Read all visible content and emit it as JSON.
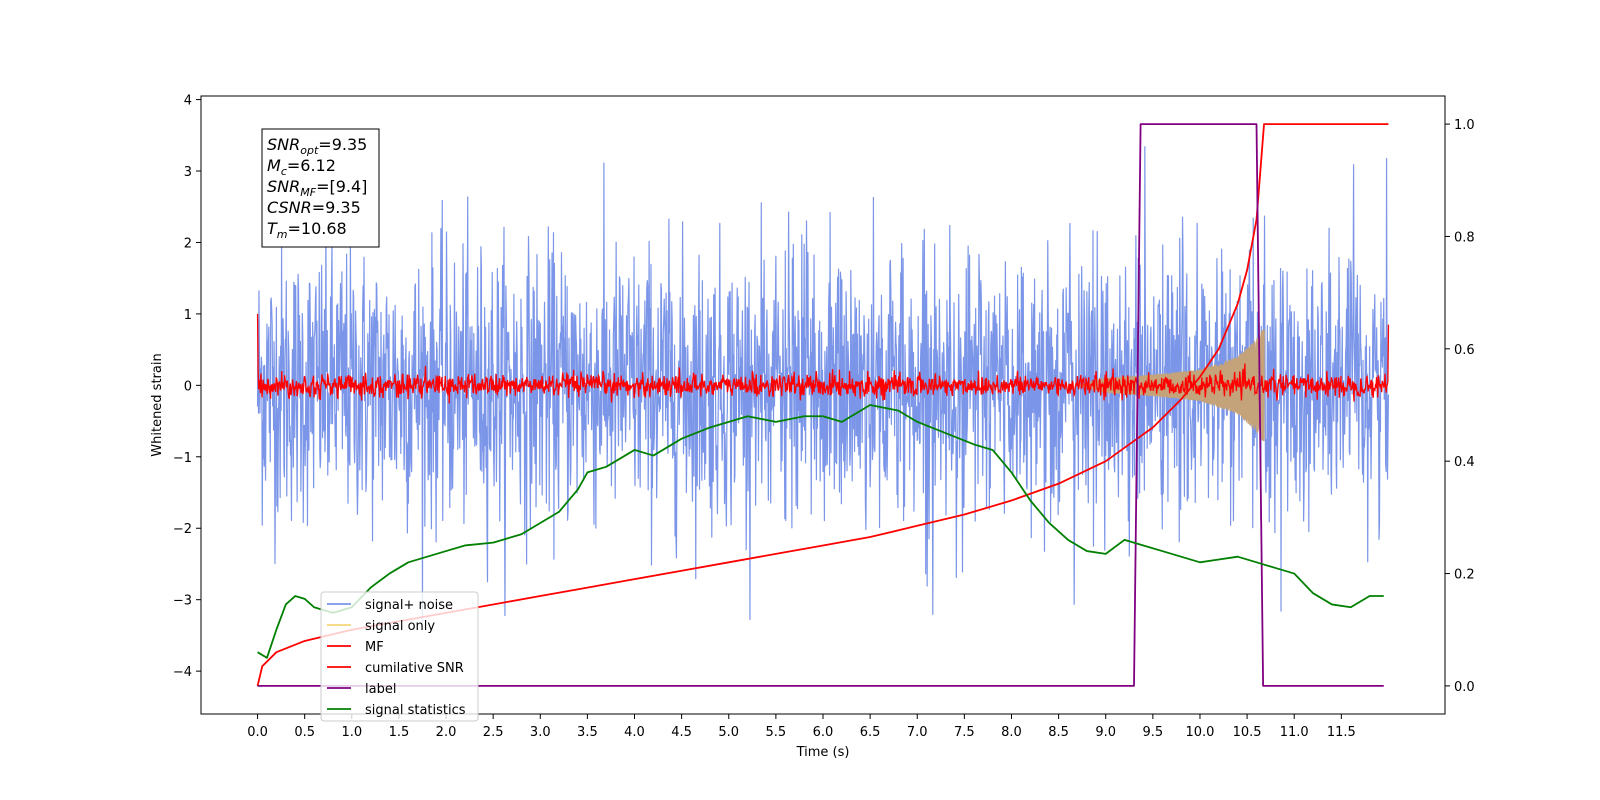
{
  "chart_data": {
    "type": "line",
    "title": "",
    "xlabel": "Time (s)",
    "ylabel": "Whitened strain",
    "y2label": "",
    "xlim": [
      -0.6,
      12.6
    ],
    "ylim": [
      -4.6,
      4.05
    ],
    "y2lim": [
      -0.05,
      1.05
    ],
    "xticks": [
      0.0,
      0.5,
      1.0,
      1.5,
      2.0,
      2.5,
      3.0,
      3.5,
      4.0,
      4.5,
      5.0,
      5.5,
      6.0,
      6.5,
      7.0,
      7.5,
      8.0,
      8.5,
      9.0,
      9.5,
      10.0,
      10.5,
      11.0,
      11.5
    ],
    "xtick_labels": [
      "0.0",
      "0.5",
      "1.0",
      "1.5",
      "2.0",
      "2.5",
      "3.0",
      "3.5",
      "4.0",
      "4.5",
      "5.0",
      "5.5",
      "6.0",
      "6.5",
      "7.0",
      "7.5",
      "8.0",
      "8.5",
      "9.0",
      "9.5",
      "10.0",
      "10.5",
      "11.0",
      "11.5"
    ],
    "yticks": [
      -4,
      -3,
      -2,
      -1,
      0,
      1,
      2,
      3,
      4
    ],
    "ytick_labels": [
      "−4",
      "−3",
      "−2",
      "−1",
      "0",
      "1",
      "2",
      "3",
      "4"
    ],
    "y2ticks": [
      0.0,
      0.2,
      0.4,
      0.6,
      0.8,
      1.0
    ],
    "y2tick_labels": [
      "0.0",
      "0.2",
      "0.4",
      "0.6",
      "0.8",
      "1.0"
    ],
    "grid": false,
    "legend_position": "bottom-left",
    "info_box": {
      "position": "top-left",
      "lines": [
        {
          "name": "SNR",
          "sub": "opt",
          "value": "=9.35"
        },
        {
          "name": "M",
          "sub": "c",
          "value": "=6.12"
        },
        {
          "name": "SNR",
          "sub": "MF",
          "value": "=[9.4]"
        },
        {
          "name": "CSNR",
          "sub": "",
          "value": "=9.35"
        },
        {
          "name": "T",
          "sub": "m",
          "value": "=10.68"
        }
      ]
    },
    "series": [
      {
        "name": "signal+ noise",
        "color": "#7b96e8",
        "axis": "left",
        "kind": "noise",
        "t_start": 0.0,
        "t_end": 12.0,
        "rms": 0.95,
        "mean": 0.0,
        "max": 3.65,
        "min": -3.4
      },
      {
        "name": "signal only",
        "color": "#f5d77a",
        "axis": "left",
        "kind": "chirp",
        "t_start": 8.7,
        "t_end": 10.68,
        "envelope": [
          [
            8.7,
            0.0
          ],
          [
            9.0,
            0.1
          ],
          [
            9.5,
            0.15
          ],
          [
            10.0,
            0.22
          ],
          [
            10.4,
            0.4
          ],
          [
            10.6,
            0.65
          ],
          [
            10.68,
            0.8
          ]
        ],
        "overlap_color": "#c4a27a"
      },
      {
        "name": "MF",
        "color": "#ff0000",
        "axis": "left",
        "kind": "noise",
        "t_start": 0.0,
        "t_end": 12.0,
        "rms": 0.08,
        "mean": 0.0,
        "start_value": 1.0,
        "end_value": 0.85
      },
      {
        "name": "cumilative SNR",
        "color": "#ff0000",
        "axis": "right",
        "kind": "line",
        "x": [
          0.0,
          0.05,
          0.2,
          0.5,
          1.0,
          1.5,
          2.0,
          2.5,
          3.0,
          3.5,
          4.0,
          4.5,
          5.0,
          5.5,
          6.0,
          6.5,
          7.0,
          7.5,
          8.0,
          8.5,
          9.0,
          9.5,
          9.8,
          10.0,
          10.2,
          10.4,
          10.5,
          10.6,
          10.68,
          12.0
        ],
        "y": [
          0.0,
          0.035,
          0.06,
          0.08,
          0.1,
          0.115,
          0.13,
          0.145,
          0.16,
          0.175,
          0.19,
          0.205,
          0.22,
          0.235,
          0.25,
          0.265,
          0.285,
          0.305,
          0.33,
          0.36,
          0.4,
          0.46,
          0.51,
          0.55,
          0.6,
          0.68,
          0.74,
          0.83,
          1.0,
          1.0
        ]
      },
      {
        "name": "label",
        "color": "#800080",
        "axis": "right",
        "kind": "line",
        "x": [
          0.0,
          9.3,
          9.37,
          10.6,
          10.67,
          11.95
        ],
        "y": [
          0.0,
          0.0,
          1.0,
          1.0,
          0.0,
          0.0
        ]
      },
      {
        "name": "signal statistics",
        "color": "#008000",
        "axis": "right",
        "kind": "line",
        "x": [
          0.0,
          0.1,
          0.2,
          0.3,
          0.4,
          0.5,
          0.6,
          0.8,
          1.0,
          1.2,
          1.4,
          1.6,
          1.8,
          2.0,
          2.2,
          2.5,
          2.8,
          3.0,
          3.2,
          3.4,
          3.5,
          3.7,
          4.0,
          4.2,
          4.5,
          4.8,
          5.0,
          5.2,
          5.5,
          5.8,
          6.0,
          6.2,
          6.5,
          6.8,
          7.0,
          7.3,
          7.6,
          7.8,
          8.0,
          8.2,
          8.4,
          8.6,
          8.8,
          9.0,
          9.2,
          9.4,
          9.6,
          9.8,
          10.0,
          10.2,
          10.4,
          10.6,
          10.8,
          11.0,
          11.2,
          11.4,
          11.6,
          11.8,
          11.95
        ],
        "y": [
          0.06,
          0.05,
          0.1,
          0.145,
          0.16,
          0.155,
          0.14,
          0.13,
          0.14,
          0.175,
          0.2,
          0.22,
          0.23,
          0.24,
          0.25,
          0.255,
          0.27,
          0.29,
          0.31,
          0.35,
          0.38,
          0.39,
          0.42,
          0.41,
          0.44,
          0.46,
          0.47,
          0.48,
          0.47,
          0.48,
          0.48,
          0.47,
          0.5,
          0.49,
          0.47,
          0.45,
          0.43,
          0.42,
          0.38,
          0.33,
          0.29,
          0.26,
          0.24,
          0.235,
          0.26,
          0.25,
          0.24,
          0.23,
          0.22,
          0.225,
          0.23,
          0.22,
          0.21,
          0.2,
          0.165,
          0.145,
          0.14,
          0.16,
          0.16
        ]
      }
    ]
  }
}
